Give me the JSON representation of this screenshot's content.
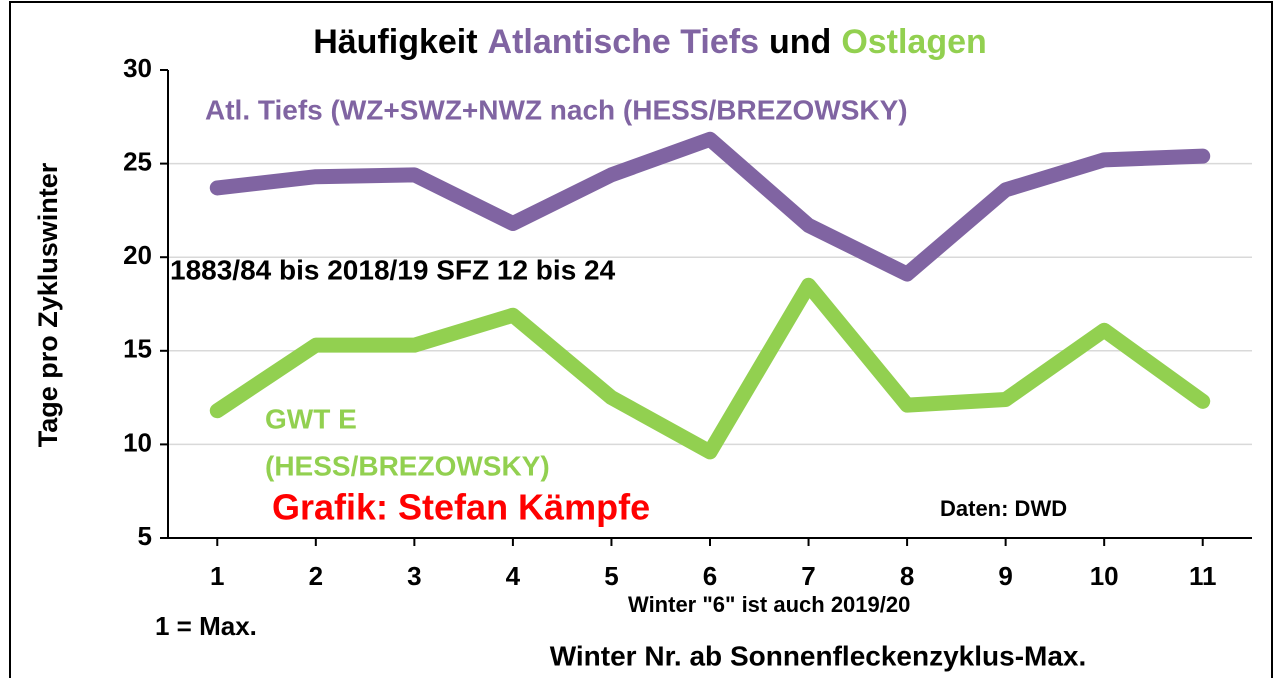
{
  "chart_data": {
    "type": "line",
    "title_parts": [
      {
        "text": "Häufigkeit",
        "color": "#000000"
      },
      {
        "text": "Atlantische Tiefs",
        "color": "#8064a2"
      },
      {
        "text": "und",
        "color": "#000000"
      },
      {
        "text": "Ostlagen",
        "color": "#92d050"
      }
    ],
    "x_label": "Winter Nr. ab Sonnenfleckenzyklus-Max.",
    "y_label": "Tage pro Zykluswinter",
    "x": [
      1,
      2,
      3,
      4,
      5,
      6,
      7,
      8,
      9,
      10,
      11
    ],
    "xlim": [
      0.5,
      11.5
    ],
    "xticks": [
      1,
      2,
      3,
      4,
      5,
      6,
      7,
      8,
      9,
      10,
      11
    ],
    "ylim": [
      5,
      30
    ],
    "yticks": [
      5,
      10,
      15,
      20,
      25,
      30
    ],
    "grid": true,
    "series": [
      {
        "color": "#8064a2",
        "values": [
          23.7,
          24.3,
          24.4,
          21.8,
          24.4,
          26.3,
          21.7,
          19.1,
          23.6,
          25.2,
          25.4
        ]
      },
      {
        "color": "#92d050",
        "values": [
          11.8,
          15.3,
          15.3,
          16.9,
          12.5,
          9.6,
          18.5,
          12.1,
          12.4,
          16.1,
          12.3
        ]
      }
    ],
    "annotations": [
      {
        "text": "Atl. Tiefs (WZ+SWZ+NWZ nach (HESS/BREZOWSKY)",
        "color": "#8064a2"
      },
      {
        "text": "1883/84 bis 2018/19  SFZ 12 bis 24",
        "color": "#000000"
      },
      {
        "text": "GWT E",
        "color": "#92d050"
      },
      {
        "text": "(HESS/BREZOWSKY)",
        "color": "#92d050"
      },
      {
        "text": "Grafik: Stefan Kämpfe",
        "color": "#ff0000"
      },
      {
        "text": "Daten: DWD",
        "color": "#000000"
      },
      {
        "text": "Winter \"6\"  ist auch 2019/20",
        "color": "#000000"
      },
      {
        "text": "1 = Max.",
        "color": "#000000"
      }
    ]
  }
}
